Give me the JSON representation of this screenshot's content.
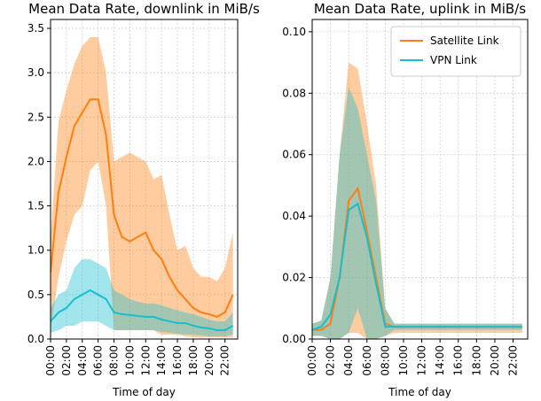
{
  "chart_data": [
    {
      "type": "line",
      "title": "Mean Data Rate, downlink in MiB/s",
      "xlabel": "Time of day",
      "x": [
        0,
        1,
        2,
        3,
        4,
        5,
        6,
        7,
        8,
        9,
        10,
        11,
        12,
        13,
        14,
        15,
        16,
        17,
        18,
        19,
        20,
        21,
        22,
        23
      ],
      "xlim": [
        0,
        23.6
      ],
      "xticks": [
        {
          "value": 0,
          "label": "00:00"
        },
        {
          "value": 2,
          "label": "02:00"
        },
        {
          "value": 4,
          "label": "04:00"
        },
        {
          "value": 6,
          "label": "06:00"
        },
        {
          "value": 8,
          "label": "08:00"
        },
        {
          "value": 10,
          "label": "10:00"
        },
        {
          "value": 12,
          "label": "12:00"
        },
        {
          "value": 14,
          "label": "14:00"
        },
        {
          "value": 16,
          "label": "16:00"
        },
        {
          "value": 18,
          "label": "18:00"
        },
        {
          "value": 20,
          "label": "20:00"
        },
        {
          "value": 22,
          "label": "22:00"
        }
      ],
      "ylim": [
        0,
        3.6
      ],
      "yticks": [
        {
          "value": 0,
          "label": "0.0"
        },
        {
          "value": 0.5,
          "label": "0.5"
        },
        {
          "value": 1,
          "label": "1.0"
        },
        {
          "value": 1.5,
          "label": "1.5"
        },
        {
          "value": 2,
          "label": "2.0"
        },
        {
          "value": 2.5,
          "label": "2.5"
        },
        {
          "value": 3,
          "label": "3.0"
        },
        {
          "value": 3.5,
          "label": "3.5"
        }
      ],
      "grid": true,
      "series": [
        {
          "color": "#ff7f0e",
          "values": [
            0.75,
            1.65,
            2.05,
            2.4,
            2.55,
            2.7,
            2.7,
            2.3,
            1.4,
            1.15,
            1.1,
            1.15,
            1.2,
            1.0,
            0.9,
            0.7,
            0.55,
            0.45,
            0.35,
            0.3,
            0.28,
            0.25,
            0.3,
            0.5
          ],
          "upper": [
            1.15,
            2.45,
            2.8,
            3.1,
            3.3,
            3.4,
            3.4,
            3.0,
            2.0,
            2.05,
            2.1,
            2.05,
            2.0,
            1.8,
            1.85,
            1.4,
            1.0,
            1.05,
            0.8,
            0.7,
            0.7,
            0.65,
            0.8,
            1.2
          ],
          "lower": [
            0.1,
            0.7,
            1.1,
            1.4,
            1.5,
            1.9,
            2.0,
            1.5,
            0.1,
            0.1,
            0.1,
            0.1,
            0.1,
            0.1,
            0.05,
            0.05,
            0.05,
            0.03,
            0.02,
            0.02,
            0.02,
            0.02,
            0.02,
            0.02
          ]
        },
        {
          "color": "#17becf",
          "values": [
            0.2,
            0.3,
            0.35,
            0.45,
            0.5,
            0.55,
            0.5,
            0.45,
            0.3,
            0.28,
            0.27,
            0.26,
            0.25,
            0.25,
            0.22,
            0.2,
            0.18,
            0.18,
            0.15,
            0.13,
            0.12,
            0.1,
            0.1,
            0.15
          ],
          "upper": [
            0.35,
            0.5,
            0.55,
            0.8,
            0.9,
            0.9,
            0.85,
            0.8,
            0.55,
            0.5,
            0.45,
            0.42,
            0.4,
            0.4,
            0.38,
            0.35,
            0.32,
            0.3,
            0.28,
            0.25,
            0.22,
            0.2,
            0.2,
            0.3
          ],
          "lower": [
            0.07,
            0.1,
            0.15,
            0.15,
            0.2,
            0.2,
            0.2,
            0.15,
            0.1,
            0.1,
            0.1,
            0.1,
            0.1,
            0.1,
            0.08,
            0.07,
            0.06,
            0.05,
            0.05,
            0.04,
            0.03,
            0.03,
            0.03,
            0.05
          ]
        }
      ]
    },
    {
      "type": "line",
      "title": "Mean Data Rate, uplink in MiB/s",
      "xlabel": "Time of day",
      "x": [
        0,
        1,
        2,
        3,
        4,
        5,
        6,
        7,
        8,
        9,
        10,
        11,
        12,
        13,
        14,
        15,
        16,
        17,
        18,
        19,
        20,
        21,
        22,
        23
      ],
      "xlim": [
        0,
        23.6
      ],
      "xticks": [
        {
          "value": 0,
          "label": "00:00"
        },
        {
          "value": 2,
          "label": "02:00"
        },
        {
          "value": 4,
          "label": "04:00"
        },
        {
          "value": 6,
          "label": "06:00"
        },
        {
          "value": 8,
          "label": "08:00"
        },
        {
          "value": 10,
          "label": "10:00"
        },
        {
          "value": 12,
          "label": "12:00"
        },
        {
          "value": 14,
          "label": "14:00"
        },
        {
          "value": 16,
          "label": "16:00"
        },
        {
          "value": 18,
          "label": "18:00"
        },
        {
          "value": 20,
          "label": "20:00"
        },
        {
          "value": 22,
          "label": "22:00"
        }
      ],
      "ylim": [
        0,
        0.104
      ],
      "yticks": [
        {
          "value": 0,
          "label": "0.00"
        },
        {
          "value": 0.02,
          "label": "0.02"
        },
        {
          "value": 0.04,
          "label": "0.04"
        },
        {
          "value": 0.06,
          "label": "0.06"
        },
        {
          "value": 0.08,
          "label": "0.08"
        },
        {
          "value": 0.1,
          "label": "0.10"
        }
      ],
      "grid": true,
      "legend": "upper right",
      "series": [
        {
          "name": "Satellite Link",
          "color": "#ff7f0e",
          "values": [
            0.003,
            0.003,
            0.005,
            0.02,
            0.045,
            0.049,
            0.035,
            0.02,
            0.005,
            0.004,
            0.004,
            0.004,
            0.004,
            0.004,
            0.004,
            0.004,
            0.004,
            0.004,
            0.004,
            0.004,
            0.004,
            0.004,
            0.004,
            0.004
          ],
          "upper": [
            0.005,
            0.006,
            0.02,
            0.06,
            0.09,
            0.088,
            0.07,
            0.05,
            0.01,
            0.005,
            0.005,
            0.005,
            0.005,
            0.005,
            0.005,
            0.005,
            0.005,
            0.005,
            0.005,
            0.005,
            0.005,
            0.005,
            0.005,
            0.005
          ],
          "lower": [
            0.001,
            0.001,
            0,
            0,
            0.002,
            0.002,
            0,
            0,
            0.001,
            0.002,
            0.002,
            0.002,
            0.002,
            0.002,
            0.002,
            0.002,
            0.002,
            0.002,
            0.002,
            0.002,
            0.002,
            0.002,
            0.002,
            0.002
          ]
        },
        {
          "name": "VPN Link",
          "color": "#17becf",
          "values": [
            0.003,
            0.004,
            0.008,
            0.02,
            0.042,
            0.044,
            0.033,
            0.018,
            0.004,
            0.004,
            0.004,
            0.004,
            0.004,
            0.004,
            0.004,
            0.004,
            0.004,
            0.004,
            0.004,
            0.004,
            0.004,
            0.004,
            0.004,
            0.004
          ],
          "upper": [
            0.005,
            0.006,
            0.02,
            0.06,
            0.082,
            0.075,
            0.06,
            0.045,
            0.01,
            0.005,
            0.005,
            0.005,
            0.005,
            0.005,
            0.005,
            0.005,
            0.005,
            0.005,
            0.005,
            0.005,
            0.005,
            0.005,
            0.005,
            0.005
          ],
          "lower": [
            0.001,
            0.001,
            0,
            0,
            0.002,
            0.01,
            0,
            0,
            0.001,
            0.003,
            0.003,
            0.003,
            0.003,
            0.003,
            0.003,
            0.003,
            0.003,
            0.003,
            0.003,
            0.003,
            0.003,
            0.003,
            0.003,
            0.003
          ]
        }
      ]
    }
  ]
}
